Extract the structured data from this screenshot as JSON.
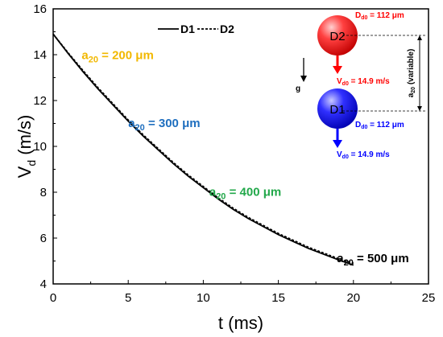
{
  "chart_data": {
    "type": "line",
    "xlabel": "t (ms)",
    "ylabel_main": "V",
    "ylabel_sub": "d",
    "ylabel_unit": " (m/s)",
    "xlim": [
      0,
      25
    ],
    "ylim": [
      4,
      16
    ],
    "xticks": [
      "0",
      "5",
      "10",
      "15",
      "20",
      "25"
    ],
    "yticks": [
      "4",
      "6",
      "8",
      "10",
      "12",
      "14",
      "16"
    ],
    "grid": false,
    "legend_position": "top",
    "series": [
      {
        "name": "D1",
        "style": "solid",
        "color": "#000000",
        "x": [
          0,
          1,
          2,
          3,
          4,
          5,
          6,
          7,
          8,
          9,
          10,
          11,
          12,
          13,
          14,
          15,
          16,
          17,
          18,
          19,
          20
        ],
        "y": [
          14.9,
          14.05,
          13.25,
          12.5,
          11.8,
          11.1,
          10.45,
          9.85,
          9.25,
          8.7,
          8.2,
          7.7,
          7.25,
          6.85,
          6.5,
          6.15,
          5.85,
          5.55,
          5.3,
          5.05,
          4.82
        ]
      },
      {
        "name": "D2",
        "style": "dashed",
        "color": "#000000",
        "x": [
          0,
          1,
          2,
          3,
          4,
          5,
          6,
          7,
          8,
          9,
          10,
          11,
          12,
          13,
          14,
          15,
          16,
          17,
          18,
          19,
          20
        ],
        "y": [
          14.9,
          14.08,
          13.3,
          12.55,
          11.85,
          11.15,
          10.5,
          9.9,
          9.3,
          8.75,
          8.25,
          7.75,
          7.3,
          6.9,
          6.55,
          6.2,
          5.9,
          5.6,
          5.35,
          5.1,
          4.9
        ]
      }
    ],
    "annotations": [
      {
        "main": "a",
        "sub": "20",
        "text": " = 200 μm",
        "color": "#F2B800",
        "x": 1.9,
        "y": 13.8
      },
      {
        "main": "a",
        "sub": "20",
        "text": " = 300 μm",
        "color": "#1F6FBF",
        "x": 5.0,
        "y": 10.85
      },
      {
        "main": "a",
        "sub": "20",
        "text": " = 400 μm",
        "color": "#22A84A",
        "x": 10.4,
        "y": 7.85
      },
      {
        "main": "a",
        "sub": "20",
        "text": " = 500 μm",
        "color": "#000000",
        "x": 18.9,
        "y": 4.95
      }
    ]
  },
  "diagram": {
    "d2_label": "D2",
    "d1_label": "D1",
    "d2_color": "#FF2020",
    "d1_color": "#2020FF",
    "d2_diameter": {
      "main": "D",
      "sub": "d0",
      "text": " = 112 μm"
    },
    "d1_diameter": {
      "main": "D",
      "sub": "d0",
      "text": " = 112 μm"
    },
    "d2_velocity": {
      "main": "V",
      "sub": "d0",
      "text": " = 14.9 m/s"
    },
    "d1_velocity": {
      "main": "V",
      "sub": "d0",
      "text": " = 14.9 m/s"
    },
    "gravity_label": "g",
    "spacing_label": {
      "main": "a",
      "sub": "20",
      "text": " (variable)"
    }
  }
}
